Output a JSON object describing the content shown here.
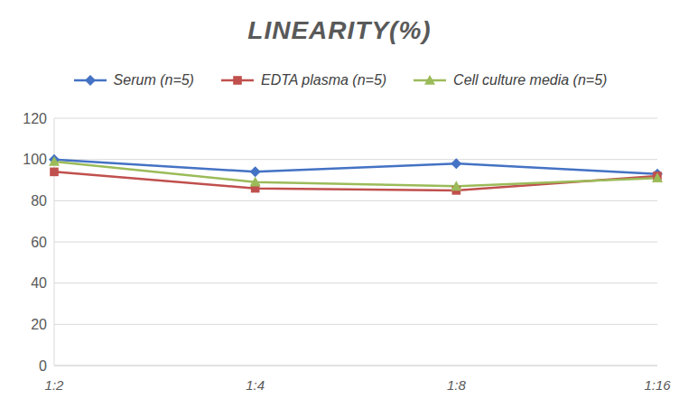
{
  "chart_data": {
    "type": "line",
    "title": "LINEARITY(%)",
    "categories": [
      "1:2",
      "1:4",
      "1:8",
      "1:16"
    ],
    "series": [
      {
        "name": "Serum (n=5)",
        "color": "#4472c4",
        "marker": "diamond",
        "values": [
          100,
          94,
          98,
          93
        ]
      },
      {
        "name": "EDTA plasma (n=5)",
        "color": "#c0504d",
        "marker": "square",
        "values": [
          94,
          86,
          85,
          92
        ]
      },
      {
        "name": "Cell culture media (n=5)",
        "color": "#9bbb59",
        "marker": "triangle",
        "values": [
          99,
          89,
          87,
          91
        ]
      }
    ],
    "ylim": [
      0,
      120
    ],
    "yticks": [
      0,
      20,
      40,
      60,
      80,
      100,
      120
    ],
    "grid": true,
    "legend": "top"
  }
}
